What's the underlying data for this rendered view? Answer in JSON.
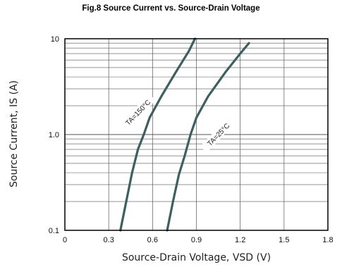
{
  "chart_data": {
    "type": "line",
    "title": "Fig.8  Source Current vs. Source-Drain Voltage",
    "xlabel": "Source-Drain Voltage, VSD (V)",
    "ylabel": "Source Current, IS (A)",
    "xlim": [
      0,
      1.8
    ],
    "ylim": [
      0.1,
      10
    ],
    "yscale": "log",
    "grid": true,
    "x_ticks": [
      0,
      0.3,
      0.6,
      0.9,
      1.2,
      1.5,
      1.8
    ],
    "x_tick_labels": [
      "0",
      "0.3",
      "0.6",
      "0.9",
      "1.2",
      "1.5",
      "1.8"
    ],
    "y_ticks": [
      0.1,
      1,
      10
    ],
    "y_tick_labels": [
      "0.1",
      "1.0",
      "10"
    ],
    "series_color": "#3d5f5f",
    "series": [
      {
        "name": "TA=150°C",
        "label_at": [
          0.5,
          1.7
        ],
        "points": [
          [
            0.38,
            0.1
          ],
          [
            0.42,
            0.2
          ],
          [
            0.46,
            0.4
          ],
          [
            0.5,
            0.7
          ],
          [
            0.54,
            1.0
          ],
          [
            0.58,
            1.5
          ],
          [
            0.66,
            2.5
          ],
          [
            0.76,
            4.5
          ],
          [
            0.85,
            7.5
          ],
          [
            0.89,
            10.0
          ]
        ]
      },
      {
        "name": "TA=25°C",
        "label_at": [
          1.05,
          1.0
        ],
        "points": [
          [
            0.7,
            0.1
          ],
          [
            0.74,
            0.2
          ],
          [
            0.78,
            0.38
          ],
          [
            0.82,
            0.6
          ],
          [
            0.86,
            1.0
          ],
          [
            0.9,
            1.5
          ],
          [
            0.98,
            2.5
          ],
          [
            1.1,
            4.5
          ],
          [
            1.2,
            7.0
          ],
          [
            1.26,
            9.0
          ]
        ]
      }
    ]
  }
}
